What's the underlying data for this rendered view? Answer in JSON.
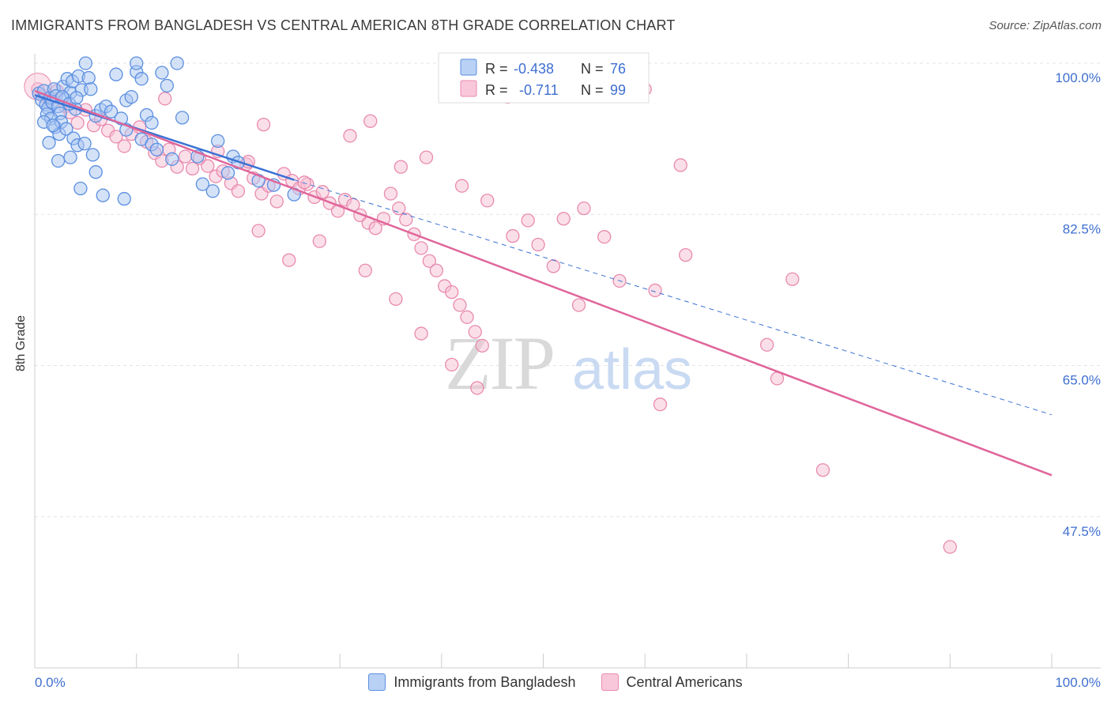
{
  "chart_data": {
    "type": "scatter",
    "title": "IMMIGRANTS FROM BANGLADESH VS CENTRAL AMERICAN 8TH GRADE CORRELATION CHART",
    "source": "Source: ZipAtlas.com",
    "xlabel": "",
    "ylabel": "8th Grade",
    "xlim": [
      0,
      100
    ],
    "ylim": [
      30,
      100
    ],
    "x_tick_labels": [
      "0.0%",
      "100.0%"
    ],
    "y_ticks": [
      47.5,
      65.0,
      82.5,
      100.0
    ],
    "y_tick_labels": [
      "47.5%",
      "65.0%",
      "82.5%",
      "100.0%"
    ],
    "watermark": {
      "zip": "ZIP",
      "atlas": "atlas"
    },
    "colors": {
      "blue": "#5b8fe0",
      "blue_fill": "#a9c6f2",
      "blue_line": "#3a72d4",
      "pink": "#e98aae",
      "pink_fill": "#f6bfd3",
      "pink_line": "#e0659a",
      "tick_label": "#3f6fd0"
    },
    "legend": [
      {
        "r_label": "R =",
        "r_value": "-0.438",
        "n_label": "N =",
        "n_value": "76"
      },
      {
        "r_label": "R =",
        "r_value": "-0.711",
        "n_label": "N =",
        "n_value": "99"
      }
    ],
    "series": [
      {
        "name": "Immigrants from Bangladesh",
        "color": "#5b8fe0",
        "trend": {
          "x0": 0,
          "y0": 96.3,
          "x1": 25.5,
          "y1": 86.5,
          "dash_to_x": 100,
          "dash_to_y": 59.3
        },
        "points": [
          [
            0.4,
            96.5
          ],
          [
            0.7,
            95.7
          ],
          [
            0.9,
            96.8
          ],
          [
            1.1,
            95.2
          ],
          [
            1.3,
            94.8
          ],
          [
            1.5,
            96.0
          ],
          [
            1.7,
            95.5
          ],
          [
            1.9,
            97.0
          ],
          [
            2.1,
            96.2
          ],
          [
            2.3,
            95.0
          ],
          [
            2.5,
            94.2
          ],
          [
            2.8,
            97.3
          ],
          [
            3.0,
            95.8
          ],
          [
            3.2,
            98.2
          ],
          [
            3.5,
            96.6
          ],
          [
            3.7,
            97.9
          ],
          [
            4.0,
            94.7
          ],
          [
            4.3,
            98.5
          ],
          [
            4.6,
            96.9
          ],
          [
            5.0,
            100.0
          ],
          [
            5.3,
            98.3
          ],
          [
            6.0,
            93.9
          ],
          [
            6.5,
            94.6
          ],
          [
            7.0,
            95.0
          ],
          [
            7.5,
            94.4
          ],
          [
            8.0,
            98.7
          ],
          [
            8.5,
            93.6
          ],
          [
            9.0,
            95.7
          ],
          [
            9.5,
            96.1
          ],
          [
            10.0,
            99.0
          ],
          [
            10.5,
            98.2
          ],
          [
            11.0,
            94.0
          ],
          [
            11.5,
            93.1
          ],
          [
            12.5,
            98.9
          ],
          [
            13.0,
            97.4
          ],
          [
            14.0,
            100.0
          ],
          [
            10.0,
            100.0
          ],
          [
            1.2,
            94.1
          ],
          [
            1.6,
            93.6
          ],
          [
            2.0,
            92.6
          ],
          [
            2.4,
            91.8
          ],
          [
            2.6,
            93.2
          ],
          [
            3.1,
            92.4
          ],
          [
            3.8,
            91.3
          ],
          [
            4.2,
            90.5
          ],
          [
            4.9,
            90.7
          ],
          [
            1.4,
            90.8
          ],
          [
            2.3,
            88.7
          ],
          [
            3.5,
            89.1
          ],
          [
            5.7,
            89.4
          ],
          [
            6.0,
            87.4
          ],
          [
            4.5,
            85.5
          ],
          [
            9.0,
            92.3
          ],
          [
            10.5,
            91.2
          ],
          [
            11.5,
            90.6
          ],
          [
            12.0,
            90.0
          ],
          [
            13.5,
            88.9
          ],
          [
            16.0,
            89.2
          ],
          [
            19.0,
            87.3
          ],
          [
            22.0,
            86.4
          ],
          [
            23.5,
            85.9
          ],
          [
            17.5,
            85.2
          ],
          [
            25.5,
            84.8
          ],
          [
            14.5,
            93.7
          ],
          [
            18.0,
            91.0
          ],
          [
            19.5,
            89.2
          ],
          [
            20.0,
            88.5
          ],
          [
            6.7,
            84.7
          ],
          [
            8.8,
            84.3
          ],
          [
            16.5,
            86.0
          ],
          [
            0.9,
            93.2
          ],
          [
            1.8,
            92.8
          ],
          [
            2.7,
            96.1
          ],
          [
            3.4,
            95.3
          ],
          [
            4.1,
            96.0
          ],
          [
            5.5,
            97.0
          ]
        ]
      },
      {
        "name": "Central Americans",
        "color": "#e98aae",
        "trend": {
          "x0": 0,
          "y0": 96.8,
          "x1": 100,
          "y1": 52.3
        },
        "points": [
          [
            0.3,
            97.0
          ],
          [
            0.8,
            96.2
          ],
          [
            1.5,
            95.8
          ],
          [
            2.2,
            96.8
          ],
          [
            3.0,
            95.0
          ],
          [
            3.5,
            94.3
          ],
          [
            4.2,
            93.1
          ],
          [
            5.0,
            94.6
          ],
          [
            5.8,
            92.8
          ],
          [
            6.5,
            93.5
          ],
          [
            7.2,
            92.2
          ],
          [
            8.0,
            91.5
          ],
          [
            8.8,
            90.4
          ],
          [
            9.5,
            91.8
          ],
          [
            10.3,
            92.6
          ],
          [
            11.0,
            90.9
          ],
          [
            11.8,
            89.6
          ],
          [
            12.5,
            88.7
          ],
          [
            13.2,
            90.0
          ],
          [
            14.0,
            88.0
          ],
          [
            14.8,
            89.2
          ],
          [
            15.5,
            87.8
          ],
          [
            16.2,
            89.0
          ],
          [
            17.0,
            88.1
          ],
          [
            17.8,
            86.9
          ],
          [
            18.5,
            87.5
          ],
          [
            19.3,
            86.1
          ],
          [
            20.0,
            85.2
          ],
          [
            20.8,
            88.3
          ],
          [
            21.5,
            86.7
          ],
          [
            22.3,
            84.9
          ],
          [
            23.0,
            85.8
          ],
          [
            23.8,
            84.0
          ],
          [
            24.5,
            87.2
          ],
          [
            25.3,
            86.4
          ],
          [
            26.0,
            85.5
          ],
          [
            26.8,
            86.0
          ],
          [
            27.5,
            84.5
          ],
          [
            28.3,
            85.1
          ],
          [
            29.0,
            83.8
          ],
          [
            29.8,
            82.9
          ],
          [
            30.5,
            84.2
          ],
          [
            31.3,
            83.6
          ],
          [
            32.0,
            82.4
          ],
          [
            32.8,
            81.5
          ],
          [
            33.5,
            80.9
          ],
          [
            34.3,
            82.0
          ],
          [
            35.0,
            84.9
          ],
          [
            35.8,
            83.2
          ],
          [
            36.5,
            81.9
          ],
          [
            37.3,
            80.2
          ],
          [
            38.0,
            78.6
          ],
          [
            38.8,
            77.1
          ],
          [
            39.5,
            76.0
          ],
          [
            40.3,
            74.2
          ],
          [
            41.0,
            73.5
          ],
          [
            41.8,
            72.0
          ],
          [
            42.5,
            70.6
          ],
          [
            43.3,
            68.9
          ],
          [
            44.0,
            67.3
          ],
          [
            12.8,
            95.9
          ],
          [
            18.0,
            89.8
          ],
          [
            21.0,
            88.6
          ],
          [
            22.5,
            92.9
          ],
          [
            26.5,
            86.2
          ],
          [
            31.0,
            91.6
          ],
          [
            33.0,
            93.3
          ],
          [
            36.0,
            88.0
          ],
          [
            38.5,
            89.1
          ],
          [
            42.0,
            85.8
          ],
          [
            44.5,
            84.1
          ],
          [
            46.5,
            96.1
          ],
          [
            48.5,
            81.8
          ],
          [
            52.0,
            82.0
          ],
          [
            54.0,
            83.2
          ],
          [
            56.0,
            79.9
          ],
          [
            57.5,
            74.8
          ],
          [
            61.0,
            73.7
          ],
          [
            64.0,
            77.8
          ],
          [
            72.0,
            67.4
          ],
          [
            74.5,
            75.0
          ],
          [
            61.5,
            60.5
          ],
          [
            73.0,
            63.5
          ],
          [
            77.5,
            52.9
          ],
          [
            90.0,
            44.0
          ],
          [
            60.0,
            97.0
          ],
          [
            63.5,
            88.2
          ],
          [
            22.0,
            80.6
          ],
          [
            25.0,
            77.2
          ],
          [
            28.0,
            79.4
          ],
          [
            32.5,
            76.0
          ],
          [
            35.5,
            72.7
          ],
          [
            38.0,
            68.7
          ],
          [
            41.0,
            65.1
          ],
          [
            43.5,
            62.4
          ],
          [
            47.0,
            80.0
          ],
          [
            49.5,
            79.0
          ],
          [
            51.0,
            76.5
          ],
          [
            53.5,
            72.0
          ]
        ]
      }
    ]
  },
  "bottom_legend": [
    {
      "label": "Immigrants from Bangladesh"
    },
    {
      "label": "Central Americans"
    }
  ]
}
